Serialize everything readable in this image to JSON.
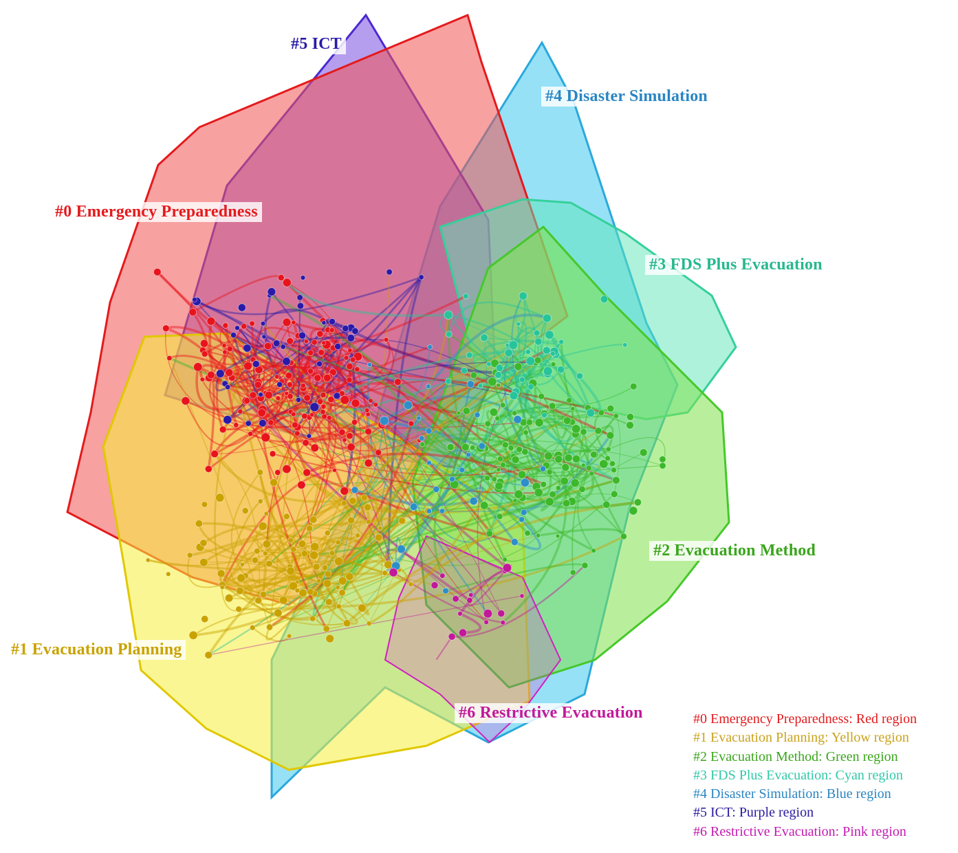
{
  "clusters": [
    {
      "id": 0,
      "label": "#0 Emergency Preparedness",
      "color": "#e8141c",
      "fill": "#f36a6a"
    },
    {
      "id": 1,
      "label": "#1 Evacuation Planning",
      "color": "#c9a200",
      "fill": "#f6ef3a"
    },
    {
      "id": 2,
      "label": "#2 Evacuation Method",
      "color": "#3cb82a",
      "fill": "#7fe24a"
    },
    {
      "id": 3,
      "label": "#3 FDS Plus Evacuation",
      "color": "#27c49a",
      "fill": "#5ee6b8"
    },
    {
      "id": 4,
      "label": "#4 Disaster Simulation",
      "color": "#2c8fc9",
      "fill": "#3fc8ee"
    },
    {
      "id": 5,
      "label": "#5 ICT",
      "color": "#2a1aa8",
      "fill": "#7a4fe0"
    },
    {
      "id": 6,
      "label": "#6 Restrictive Evacuation",
      "color": "#c2189a",
      "fill": "#e03ad0"
    }
  ],
  "legend": [
    {
      "text": "#0 Emergency Preparedness: Red region",
      "color": "#e41a1c"
    },
    {
      "text": "#1 Evacuation Planning: Yellow region",
      "color": "#c9a31a"
    },
    {
      "text": "#2 Evacuation Method: Green region",
      "color": "#3aa61c"
    },
    {
      "text": "#3 FDS Plus Evacuation: Cyan region",
      "color": "#30c8a8"
    },
    {
      "text": "#4 Disaster Simulation: Blue region",
      "color": "#2a86c2"
    },
    {
      "text": "#5 ICT: Purple region",
      "color": "#2a1aa0"
    },
    {
      "text": "#6 Restrictive Evacuation: Pink region",
      "color": "#c21ab0"
    }
  ]
}
